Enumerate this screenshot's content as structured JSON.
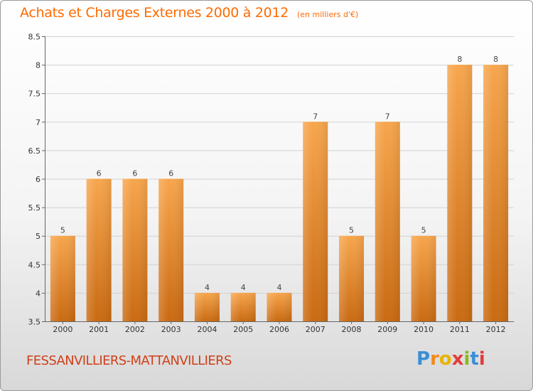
{
  "chart_data": {
    "type": "bar",
    "title": "Achats et Charges Externes 2000 à 2012",
    "subtitle": "(en milliers d'€)",
    "categories": [
      "2000",
      "2001",
      "2002",
      "2003",
      "2004",
      "2005",
      "2006",
      "2007",
      "2008",
      "2009",
      "2010",
      "2011",
      "2012"
    ],
    "values": [
      5,
      6,
      6,
      6,
      4,
      4,
      4,
      7,
      5,
      7,
      5,
      8,
      8
    ],
    "data_labels": [
      "5",
      "6",
      "6",
      "6",
      "4",
      "4",
      "4",
      "7",
      "5",
      "7",
      "5",
      "8",
      "8"
    ],
    "ylim": [
      3.5,
      8.5
    ],
    "yticks": [
      3.5,
      4,
      4.5,
      5,
      5.5,
      6,
      6.5,
      7,
      7.5,
      8,
      8.5
    ],
    "ytick_labels": [
      "3.5",
      "4",
      "4.5",
      "5",
      "5.5",
      "6",
      "6.5",
      "7",
      "7.5",
      "8",
      "8.5"
    ],
    "grid": true,
    "bar_color_top": "#f7a64d",
    "bar_color_bottom": "#c96a12"
  },
  "footer": {
    "commune": "FESSANVILLIERS-MATTANVILLIERS",
    "logo_text": "Proxiti"
  },
  "colors": {
    "title": "#ff6a00",
    "commune": "#d0401a",
    "logo_letters": [
      "#3a8fd6",
      "#f08a1c",
      "#e8b400",
      "#e23c3c",
      "#8ab822",
      "#3a8fd6",
      "#e23c3c"
    ]
  }
}
